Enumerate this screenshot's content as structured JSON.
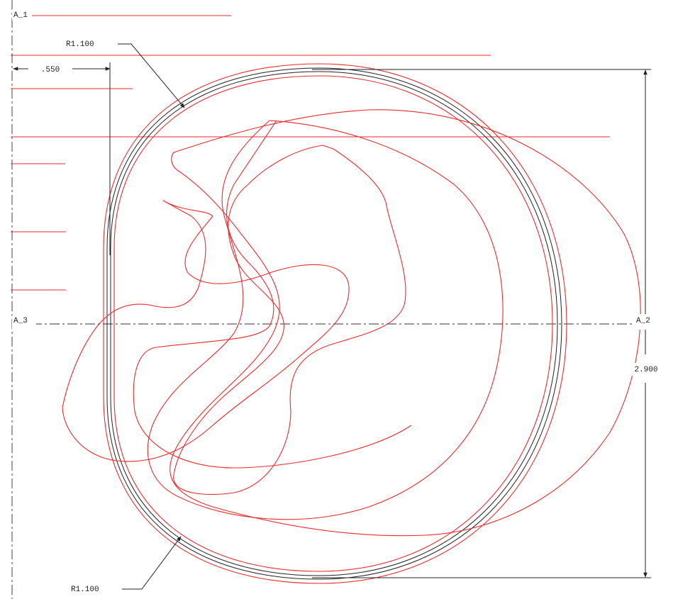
{
  "datums": {
    "a1": "A_1",
    "a2": "A_2",
    "a3": "A_3"
  },
  "dimensions": {
    "offset": ".550",
    "height": "2.900",
    "radius_top": "R1.100",
    "radius_bottom": "R1.100"
  }
}
